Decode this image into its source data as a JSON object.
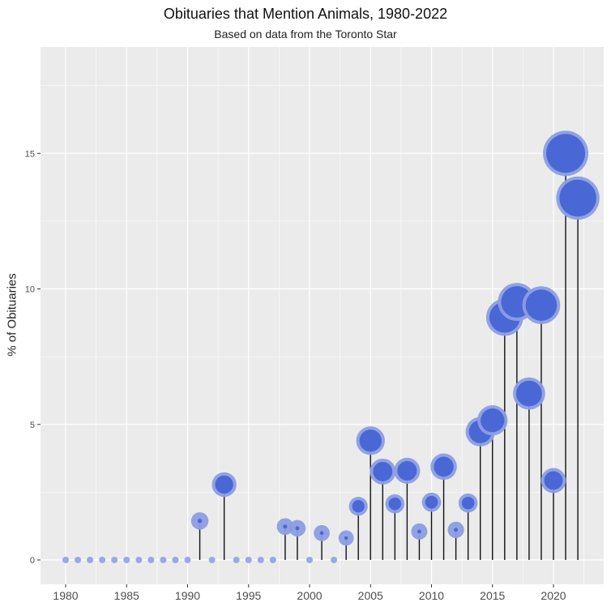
{
  "chart_data": {
    "type": "scatter",
    "subtype": "lollipop",
    "title": "Obituaries that Mention Animals, 1980-2022",
    "subtitle": "Based on data from the Toronto Star",
    "xlabel": "",
    "ylabel": "% of Obituaries",
    "xlim": [
      1978,
      2023.5
    ],
    "ylim": [
      -1.8,
      18.9
    ],
    "x_ticks": [
      1980,
      1985,
      1990,
      1995,
      2000,
      2005,
      2010,
      2015,
      2020
    ],
    "y_ticks": [
      0,
      5,
      10,
      15
    ],
    "grid": true,
    "legend": null,
    "x": [
      1980,
      1981,
      1982,
      1983,
      1984,
      1985,
      1986,
      1987,
      1988,
      1989,
      1990,
      1991,
      1992,
      1993,
      1994,
      1995,
      1996,
      1997,
      1998,
      1999,
      2000,
      2001,
      2002,
      2003,
      2004,
      2005,
      2006,
      2007,
      2008,
      2009,
      2010,
      2011,
      2012,
      2013,
      2014,
      2015,
      2016,
      2017,
      2018,
      2019,
      2020,
      2021,
      2022
    ],
    "values": [
      0,
      0,
      0,
      0,
      0,
      0,
      0,
      0,
      0,
      0,
      0,
      1.44,
      0,
      2.78,
      0,
      0,
      0,
      0,
      1.23,
      1.17,
      0,
      0.99,
      0,
      0.81,
      1.98,
      4.4,
      3.26,
      2.07,
      3.29,
      1.05,
      2.13,
      3.44,
      1.11,
      2.1,
      4.73,
      5.15,
      8.95,
      9.52,
      6.14,
      9.4,
      2.93,
      15.0,
      13.35
    ],
    "point_size_encodes": "value"
  },
  "colors": {
    "panel_bg": "#ebebeb",
    "grid": "#ffffff",
    "point_inner": "#4a67d6",
    "point_outer": "#8b9ee2",
    "zero_point": "#9aa9e4",
    "stem": "#111111"
  }
}
